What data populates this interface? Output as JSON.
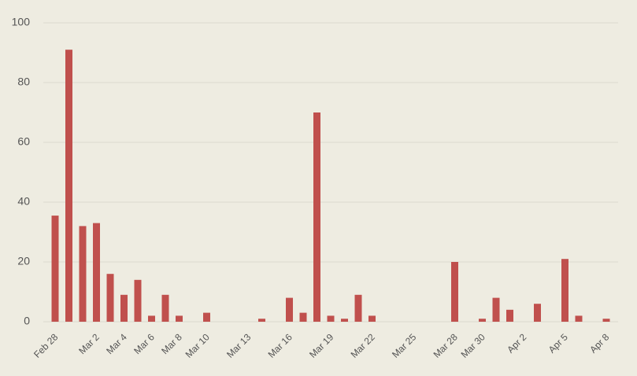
{
  "chart_data": {
    "type": "bar",
    "categories": [
      "Feb 28",
      null,
      null,
      "Mar 2",
      null,
      "Mar 4",
      null,
      "Mar 6",
      null,
      "Mar 8",
      null,
      "Mar 10",
      null,
      null,
      "Mar 13",
      null,
      null,
      "Mar 16",
      null,
      null,
      "Mar 19",
      null,
      null,
      "Mar 22",
      null,
      null,
      "Mar 25",
      null,
      null,
      "Mar 28",
      null,
      "Mar 30",
      null,
      null,
      "Apr 2",
      null,
      null,
      "Apr 5",
      null,
      null,
      "Apr 8"
    ],
    "values": [
      35.5,
      91,
      32,
      33,
      16,
      9,
      14,
      2,
      9,
      2,
      0,
      3,
      0,
      0,
      0,
      1,
      0,
      8,
      3,
      70,
      2,
      1,
      9,
      2,
      0,
      0,
      0,
      0,
      0,
      20,
      0,
      1,
      8,
      4,
      0,
      6,
      0,
      21,
      2,
      0,
      1
    ],
    "color": "#c0504d",
    "ylim": [
      0,
      100
    ],
    "yticks": [
      0,
      20,
      40,
      60,
      80,
      100
    ],
    "grid": true
  }
}
